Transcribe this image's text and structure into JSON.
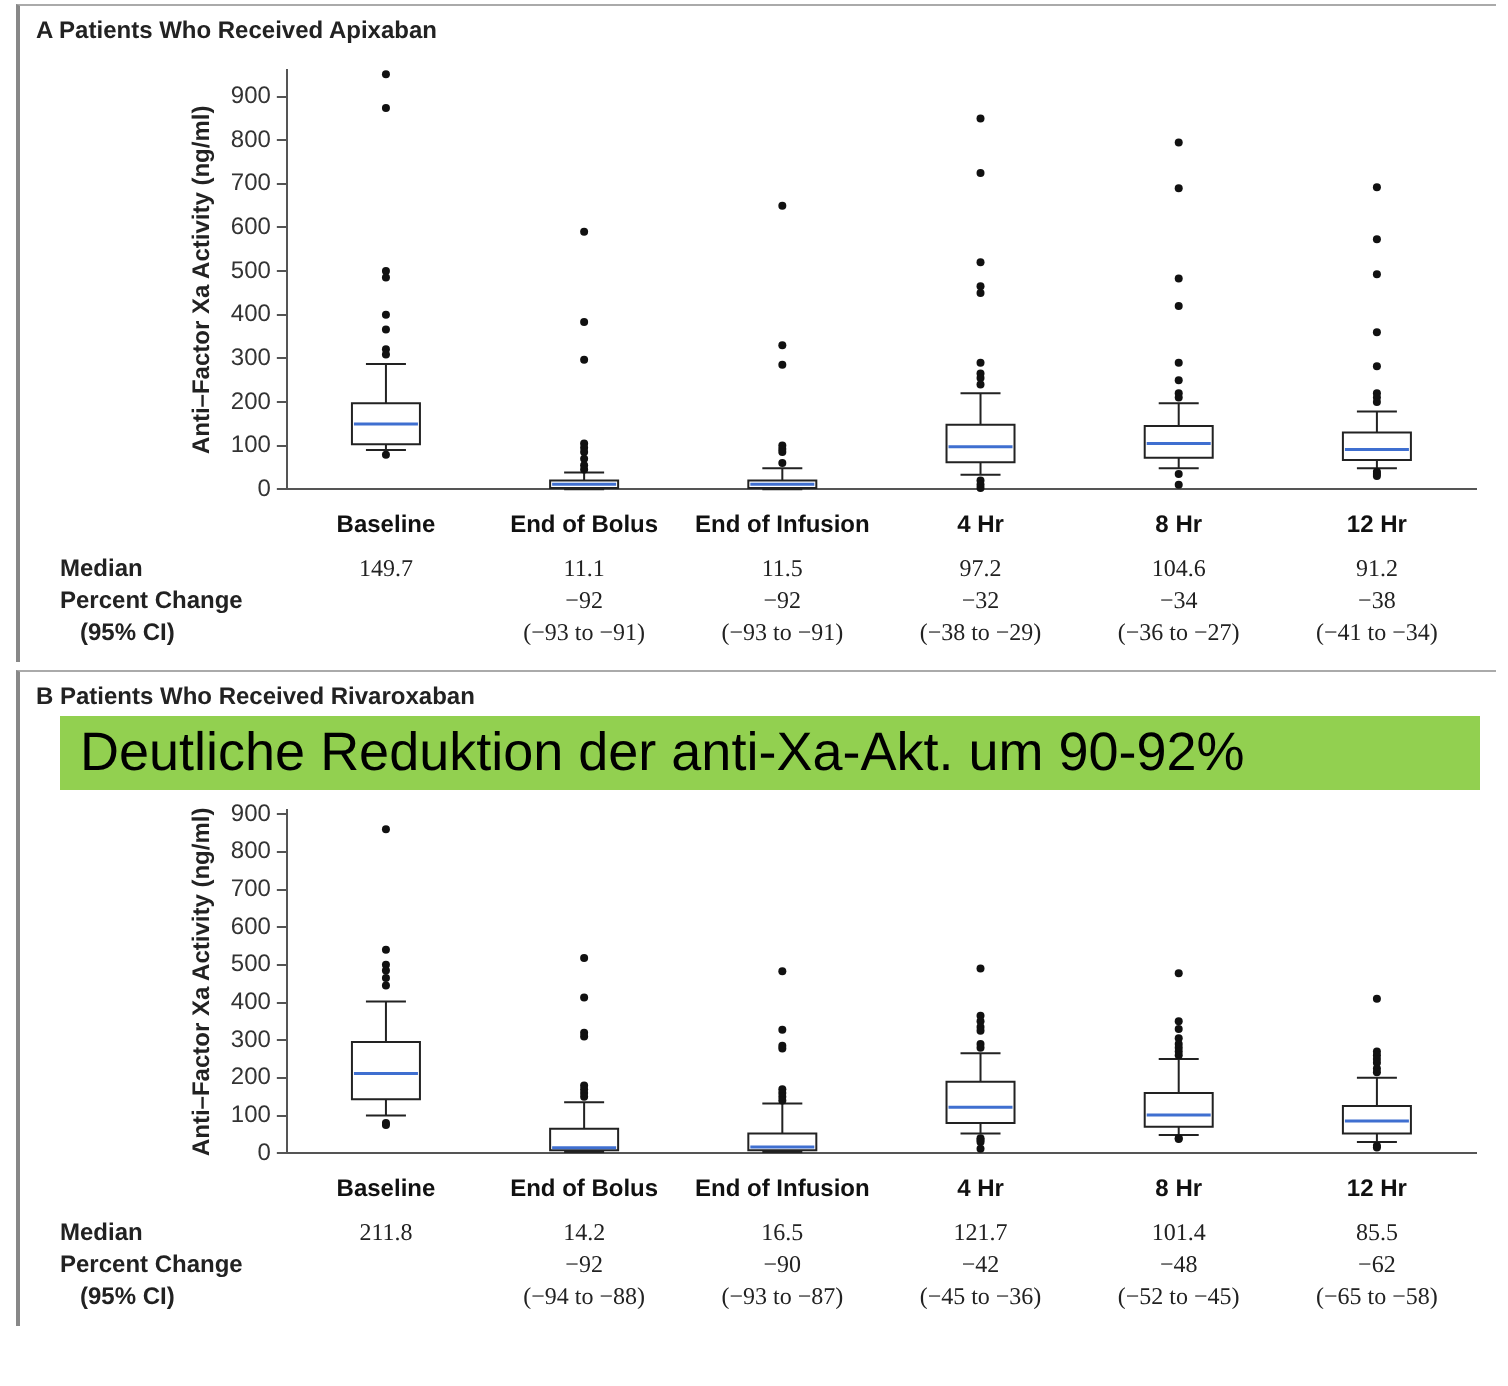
{
  "chart_data": [
    {
      "type": "box",
      "title": "A Patients Who Received Apixaban",
      "ylabel": "Anti–Factor Xa Activity (ng/ml)",
      "categories": [
        "Baseline",
        "End of Bolus",
        "End of Infusion",
        "4 Hr",
        "8 Hr",
        "12 Hr"
      ],
      "ylim": [
        0,
        960
      ],
      "yticks": [
        0,
        100,
        200,
        300,
        400,
        500,
        600,
        700,
        800,
        900
      ],
      "boxes": [
        {
          "low": 90,
          "q1": 103,
          "median": 149.7,
          "q3": 197,
          "high": 287,
          "outliers": [
            951,
            874,
            500,
            485,
            400,
            366,
            321,
            309,
            79
          ]
        },
        {
          "low": 0,
          "q1": 3,
          "median": 11.1,
          "q3": 20,
          "high": 38,
          "outliers": [
            590,
            383,
            297,
            105,
            95,
            85,
            70,
            55,
            45
          ]
        },
        {
          "low": 0,
          "q1": 3,
          "median": 11.5,
          "q3": 20,
          "high": 48,
          "outliers": [
            650,
            330,
            285,
            100,
            92,
            85,
            60
          ]
        },
        {
          "low": 33,
          "q1": 62,
          "median": 97.2,
          "q3": 148,
          "high": 220,
          "outliers": [
            850,
            725,
            520,
            465,
            450,
            290,
            265,
            255,
            240,
            20,
            10,
            3
          ]
        },
        {
          "low": 48,
          "q1": 72,
          "median": 104.6,
          "q3": 145,
          "high": 197,
          "outliers": [
            795,
            690,
            483,
            420,
            290,
            250,
            220,
            210,
            35,
            10
          ]
        },
        {
          "low": 48,
          "q1": 67,
          "median": 91.2,
          "q3": 130,
          "high": 178,
          "outliers": [
            692,
            573,
            493,
            360,
            282,
            220,
            210,
            200,
            40,
            35,
            30
          ]
        }
      ],
      "annotations": [
        "Median",
        "Percent Change",
        "(95% CI)",
        "149.7",
        "11.1\n−92\n(−93 to −91)",
        "11.5\n−92\n(−93 to −91)",
        "97.2\n−32\n(−38 to −29)",
        "104.6\n−34\n(−36 to −27)",
        "91.2\n−38\n(−41 to −34)"
      ]
    },
    {
      "type": "box",
      "title": "B Patients Who Received Rivaroxaban",
      "ylabel": "Anti–Factor Xa Activity (ng/ml)",
      "categories": [
        "Baseline",
        "End of Bolus",
        "End of Infusion",
        "4 Hr",
        "8 Hr",
        "12 Hr"
      ],
      "ylim": [
        0,
        910
      ],
      "yticks": [
        0,
        100,
        200,
        300,
        400,
        500,
        600,
        700,
        800,
        900
      ],
      "boxes": [
        {
          "low": 100,
          "q1": 143,
          "median": 211.8,
          "q3": 295,
          "high": 403,
          "outliers": [
            860,
            540,
            500,
            485,
            465,
            445,
            80,
            75
          ]
        },
        {
          "low": 3,
          "q1": 8,
          "median": 14.2,
          "q3": 65,
          "high": 135,
          "outliers": [
            518,
            413,
            320,
            310,
            180,
            170,
            160,
            150
          ]
        },
        {
          "low": 3,
          "q1": 8,
          "median": 16.5,
          "q3": 52,
          "high": 132,
          "outliers": [
            483,
            328,
            285,
            278,
            170,
            160,
            150,
            140
          ]
        },
        {
          "low": 52,
          "q1": 80,
          "median": 121.7,
          "q3": 190,
          "high": 265,
          "outliers": [
            490,
            365,
            350,
            335,
            325,
            290,
            280,
            40,
            35,
            30,
            12
          ]
        },
        {
          "low": 48,
          "q1": 70,
          "median": 101.4,
          "q3": 160,
          "high": 250,
          "outliers": [
            478,
            350,
            330,
            305,
            290,
            280,
            270,
            260,
            40,
            38
          ]
        },
        {
          "low": 30,
          "q1": 52,
          "median": 85.5,
          "q3": 125,
          "high": 200,
          "outliers": [
            410,
            270,
            260,
            250,
            240,
            225,
            215,
            20,
            15
          ]
        }
      ],
      "annotations": [
        "Median",
        "Percent Change",
        "(95% CI)",
        "211.8",
        "14.2\n−92\n(−94 to −88)",
        "16.5\n−90\n(−93 to −87)",
        "121.7\n−42\n(−45 to −36)",
        "101.4\n−48\n(−52 to −45)",
        "85.5\n−62\n(−65 to −58)",
        "Deutliche Reduktion der anti-Xa-Akt. um 90-92%"
      ]
    }
  ]
}
